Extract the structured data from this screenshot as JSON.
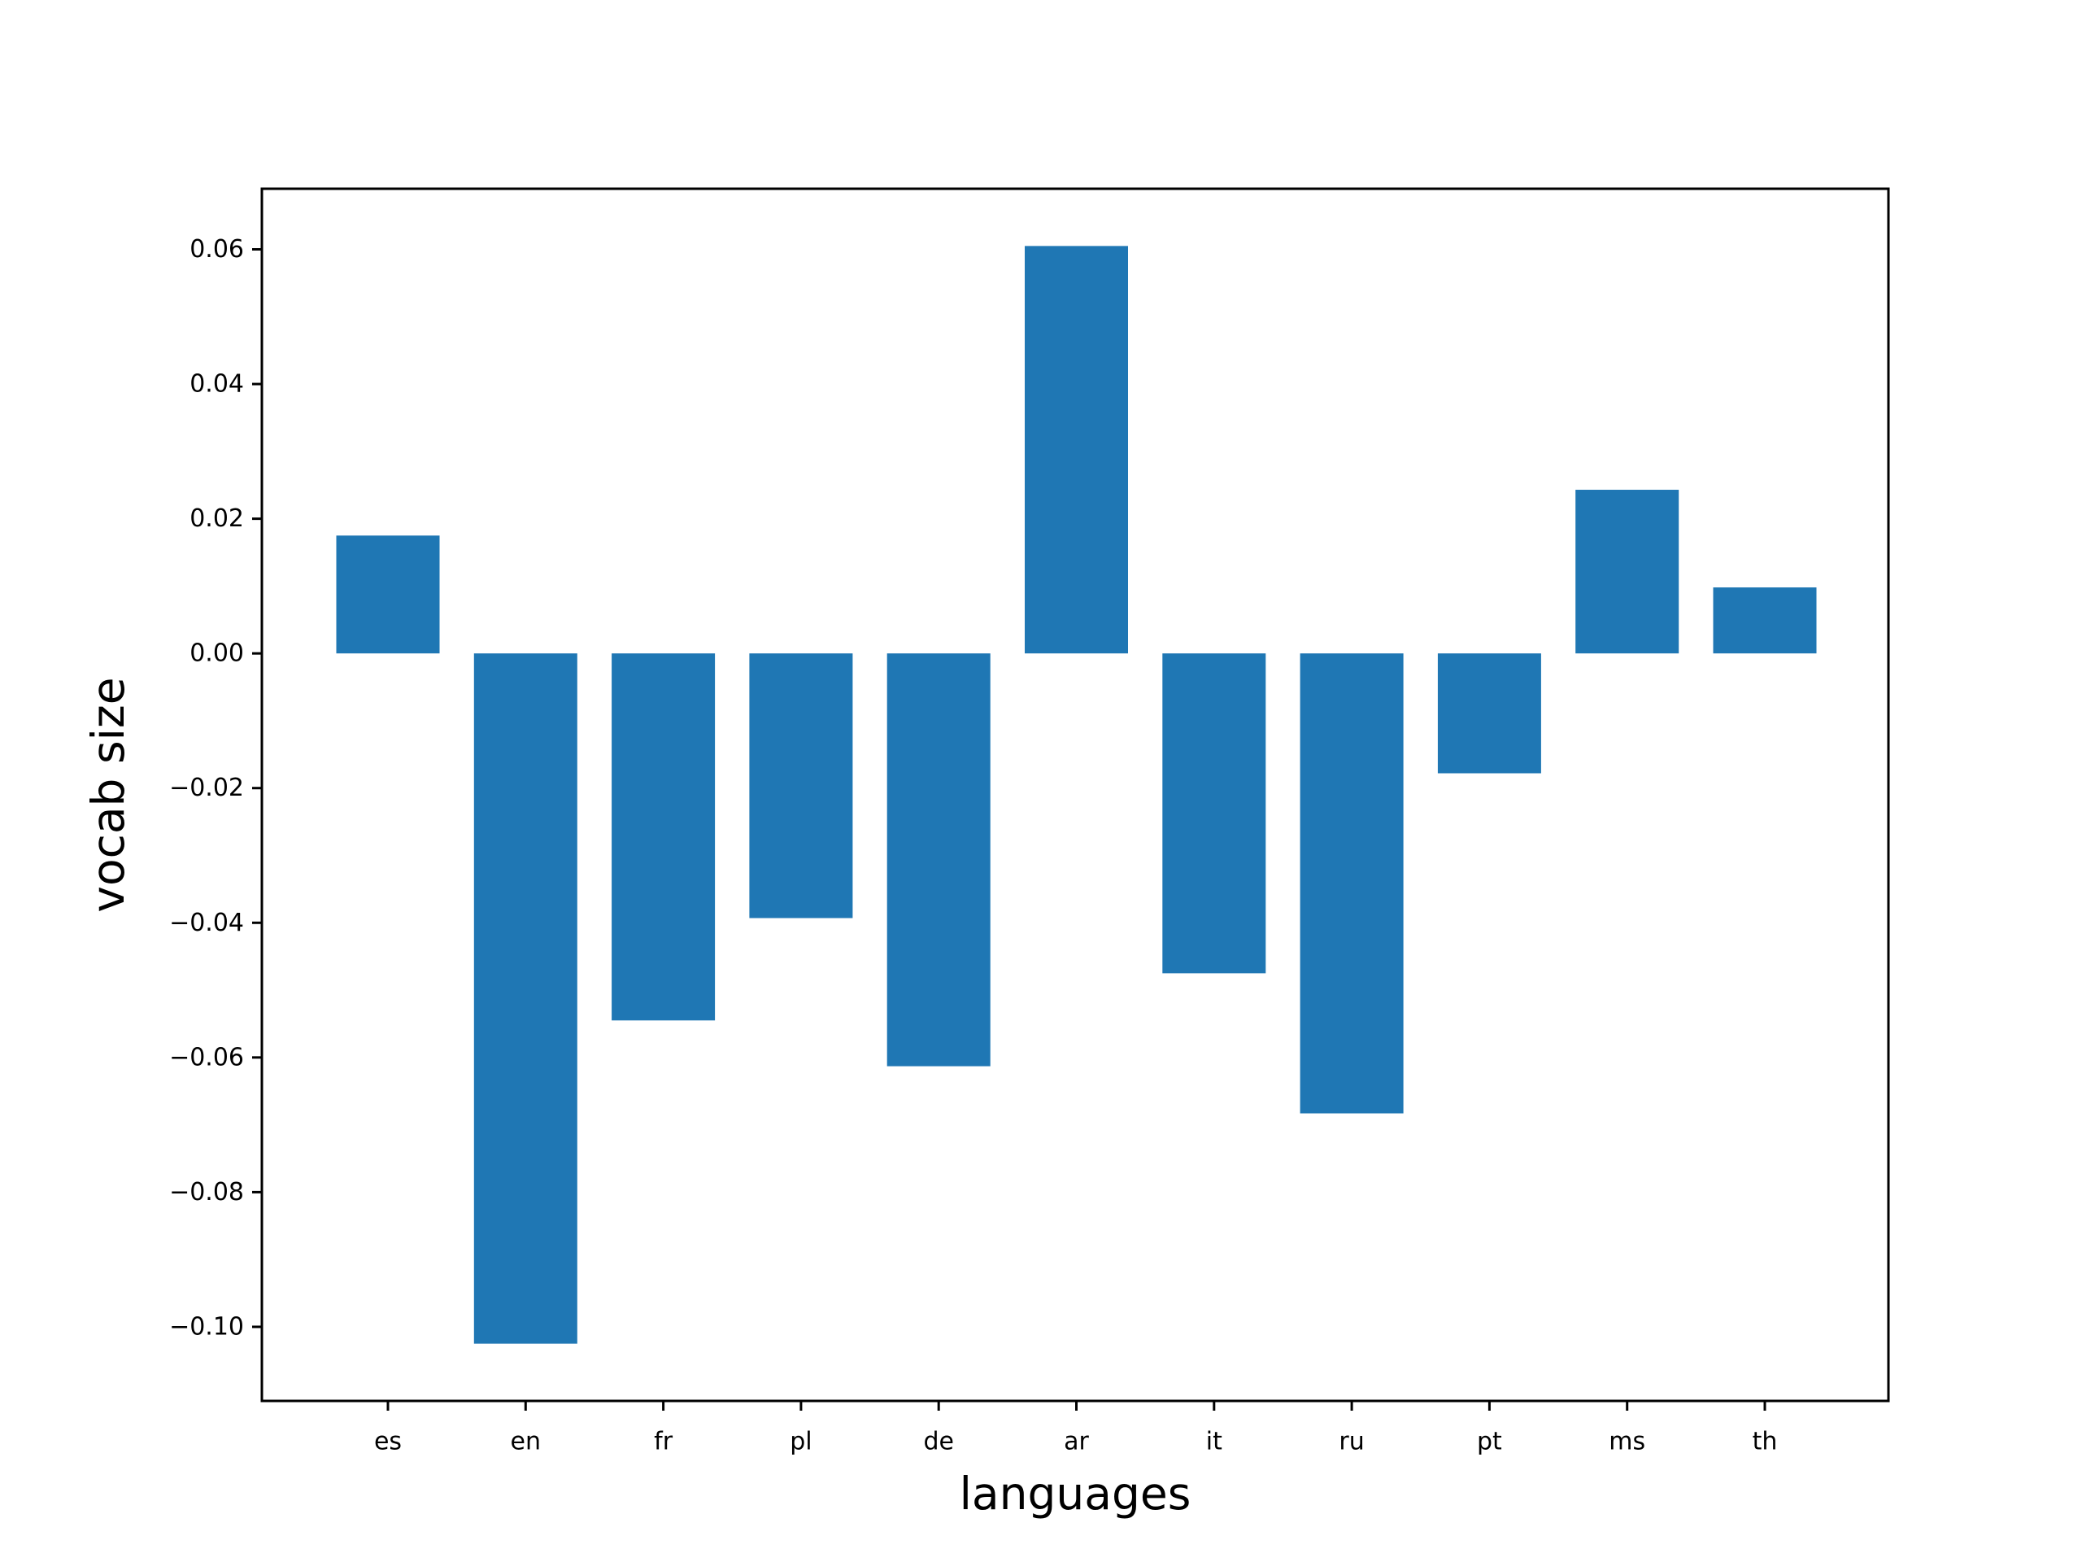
{
  "chart_data": {
    "type": "bar",
    "title": "",
    "xlabel": "languages",
    "ylabel": "vocab size",
    "categories": [
      "es",
      "en",
      "fr",
      "pl",
      "de",
      "ar",
      "it",
      "ru",
      "pt",
      "ms",
      "th"
    ],
    "values": [
      0.0175,
      -0.1025,
      -0.0545,
      -0.0393,
      -0.0613,
      0.0605,
      -0.0475,
      -0.0683,
      -0.0178,
      0.0243,
      0.0098
    ],
    "ylim": [
      -0.111,
      0.069
    ],
    "yticks": [
      0.06,
      0.04,
      0.02,
      0.0,
      -0.02,
      -0.04,
      -0.06,
      -0.08,
      -0.1
    ],
    "ytick_labels": [
      "0.06",
      "0.04",
      "0.02",
      "0.00",
      "−0.02",
      "−0.04",
      "−0.06",
      "−0.08",
      "−0.10"
    ],
    "bar_color": "#1f77b4",
    "grid": false,
    "legend": "none"
  }
}
